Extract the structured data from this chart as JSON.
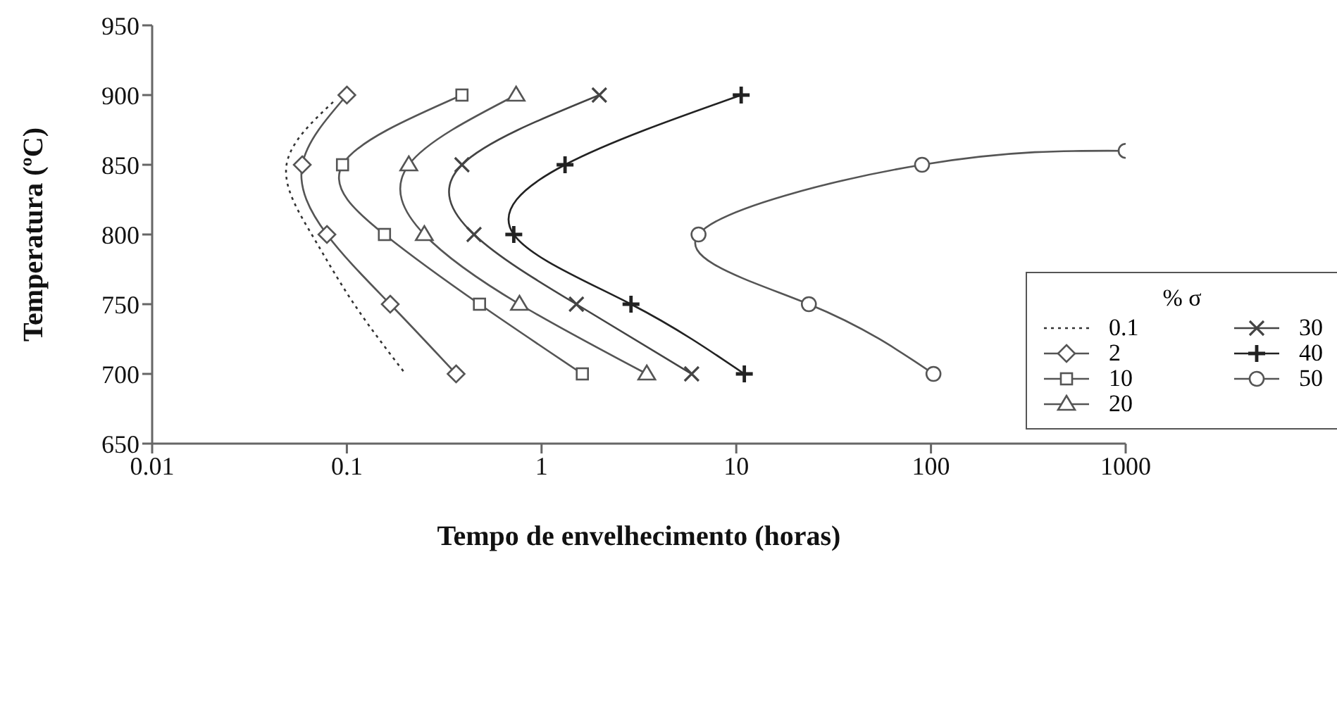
{
  "chart_data": {
    "type": "line",
    "xlabel": "Tempo de envelhecimento (horas)",
    "ylabel": "Temperatura (ºC)",
    "legend_title": "% σ",
    "legend": "right",
    "log": "x",
    "grid": false,
    "xlim": [
      0.01,
      1000
    ],
    "xticks": [
      0.01,
      0.1,
      1,
      10,
      100,
      1000
    ],
    "ylim": [
      650,
      950
    ],
    "yticks": [
      650,
      700,
      750,
      800,
      850,
      900,
      950
    ],
    "series": [
      {
        "name": "0.1",
        "color": "#333333",
        "marker": "none",
        "line_style": "dotted",
        "x": [
          0.085,
          0.049,
          0.066,
          0.109,
          0.2
        ],
        "values": [
          895,
          850,
          800,
          750,
          700
        ]
      },
      {
        "name": "2",
        "color": "#555555",
        "marker": "diamond",
        "line_style": "solid",
        "x": [
          0.1,
          0.059,
          0.079,
          0.167,
          0.364
        ],
        "values": [
          900,
          850,
          800,
          750,
          700
        ]
      },
      {
        "name": "10",
        "color": "#555555",
        "marker": "square",
        "line_style": "solid",
        "x": [
          0.39,
          0.095,
          0.156,
          0.48,
          1.62
        ],
        "values": [
          900,
          850,
          800,
          750,
          700
        ]
      },
      {
        "name": "20",
        "color": "#555555",
        "marker": "triangle",
        "line_style": "solid",
        "x": [
          0.74,
          0.208,
          0.25,
          0.77,
          3.47
        ],
        "values": [
          900,
          850,
          800,
          750,
          700
        ]
      },
      {
        "name": "30",
        "color": "#444444",
        "marker": "cross",
        "line_style": "solid",
        "x": [
          1.98,
          0.39,
          0.45,
          1.51,
          5.9
        ],
        "values": [
          900,
          850,
          800,
          750,
          700
        ]
      },
      {
        "name": "40",
        "color": "#222222",
        "marker": "plus",
        "line_style": "solid",
        "x": [
          10.6,
          1.32,
          0.72,
          2.88,
          11
        ],
        "values": [
          900,
          850,
          800,
          750,
          700
        ]
      },
      {
        "name": "50",
        "color": "#555555",
        "marker": "circle",
        "line_style": "solid",
        "x": [
          1000,
          90,
          6.4,
          23.6,
          103
        ],
        "values": [
          860,
          850,
          800,
          750,
          700
        ]
      }
    ]
  }
}
